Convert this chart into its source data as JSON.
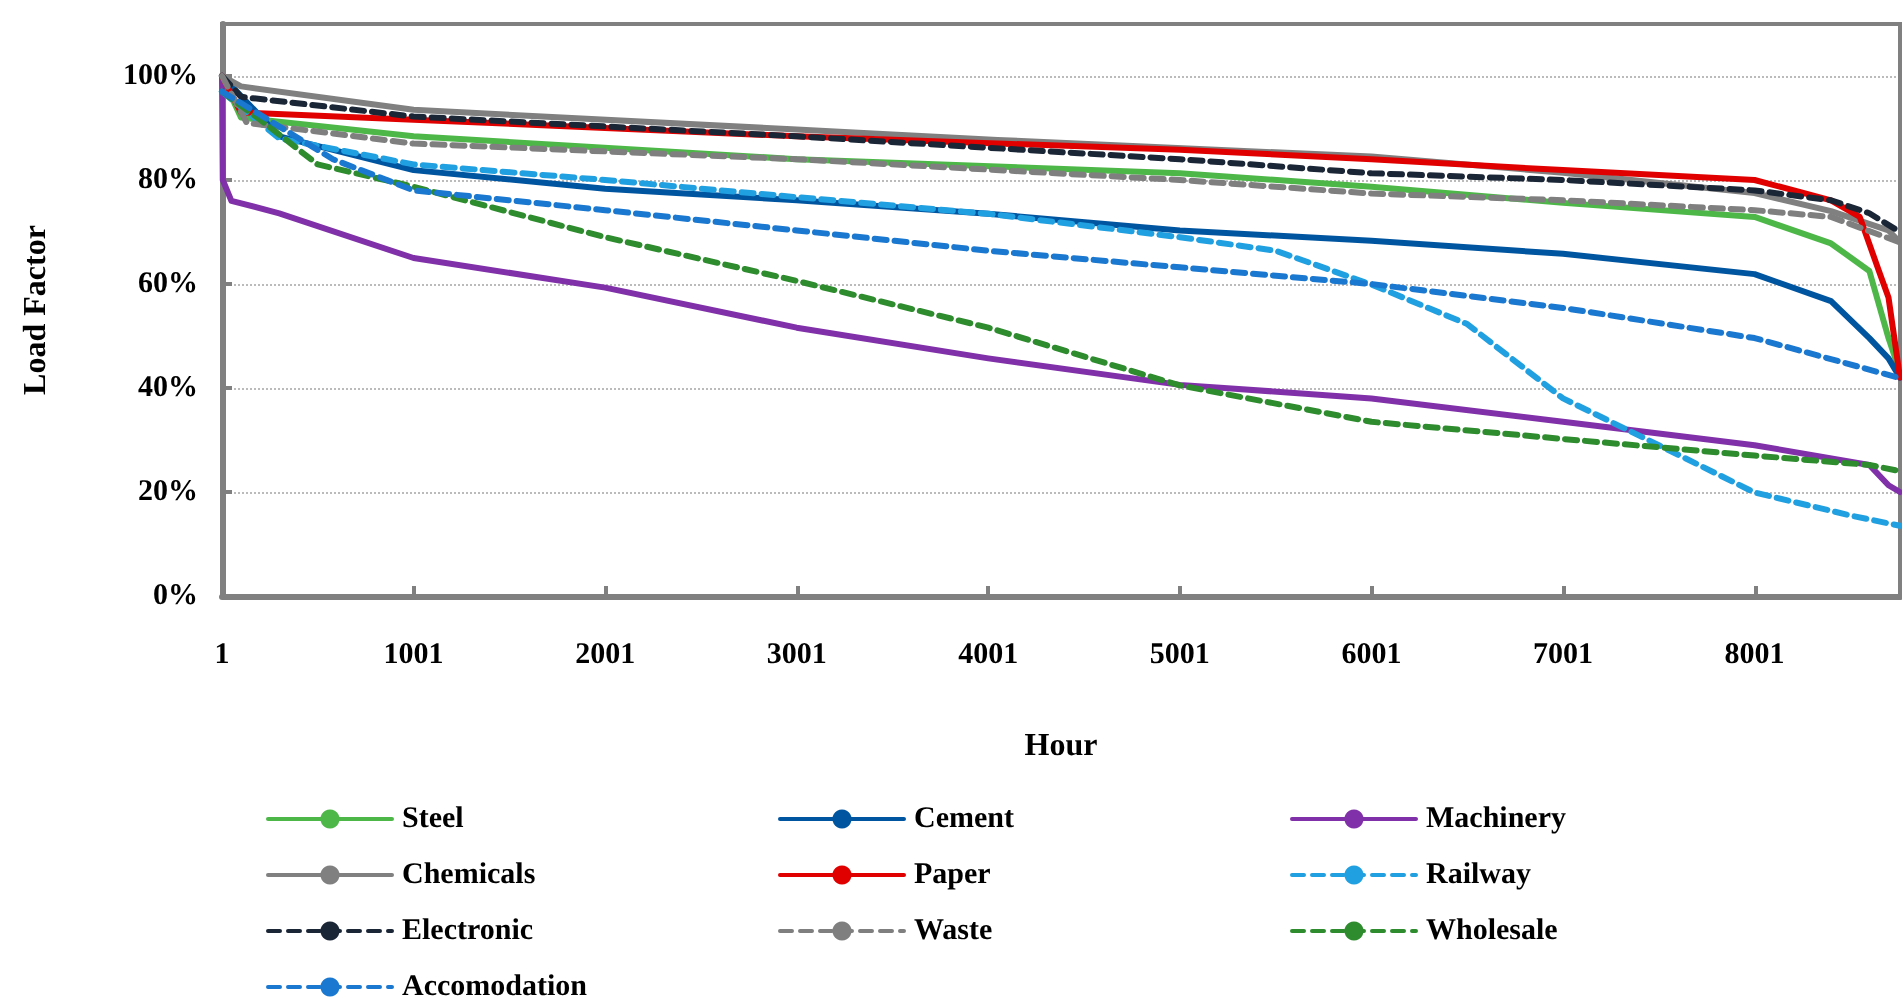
{
  "chart_data": {
    "type": "line",
    "xlabel": "Hour",
    "ylabel": "Load Factor",
    "xlim": [
      1,
      8760
    ],
    "xticks": [
      1,
      1001,
      2001,
      3001,
      4001,
      5001,
      6001,
      7001,
      8001
    ],
    "ylim": [
      0,
      110
    ],
    "yticks": [
      {
        "value": 0,
        "label": "0%"
      },
      {
        "value": 20,
        "label": "20%"
      },
      {
        "value": 40,
        "label": "40%"
      },
      {
        "value": 60,
        "label": "60%"
      },
      {
        "value": 80,
        "label": "80%"
      },
      {
        "value": 100,
        "label": "100%"
      }
    ],
    "grid": "y",
    "legend": "bottom",
    "marker": "none",
    "series": [
      {
        "name": "Steel",
        "color": "#4db848",
        "line_style": "solid",
        "x": [
          1,
          100,
          1001,
          3001,
          5001,
          6001,
          7001,
          8001,
          8400,
          8600,
          8700,
          8760
        ],
        "values": [
          100,
          92,
          88.4,
          84,
          81.3,
          78.7,
          75.6,
          72.9,
          67.8,
          62.5,
          49.6,
          43
        ]
      },
      {
        "name": "Cement",
        "color": "#0055a0",
        "line_style": "solid",
        "x": [
          1,
          300,
          1001,
          2001,
          3001,
          4001,
          5001,
          6001,
          7001,
          8001,
          8400,
          8600,
          8700,
          8760
        ],
        "values": [
          100,
          88.4,
          81.9,
          78.3,
          76.1,
          73.5,
          70.3,
          68.3,
          65.8,
          61.9,
          56.7,
          49.6,
          45.7,
          42
        ]
      },
      {
        "name": "Machinery",
        "color": "#8030a8",
        "line_style": "solid",
        "x": [
          1,
          5,
          50,
          300,
          1001,
          2001,
          3001,
          4001,
          5001,
          6001,
          7001,
          8001,
          8600,
          8700,
          8760
        ],
        "values": [
          100,
          80,
          76,
          73.6,
          65,
          59.3,
          51.6,
          45.7,
          40.6,
          38,
          33.5,
          29,
          25.2,
          21.3,
          20
        ]
      },
      {
        "name": "Chemicals",
        "color": "#808080",
        "line_style": "solid",
        "x": [
          1,
          100,
          1001,
          3001,
          4050,
          6001,
          7001,
          8001,
          8400,
          8700,
          8760
        ],
        "values": [
          100,
          98,
          93.5,
          89.7,
          87.7,
          84.5,
          81.4,
          77.5,
          74,
          70.3,
          68
        ]
      },
      {
        "name": "Paper",
        "color": "#e00000",
        "line_style": "solid",
        "x": [
          1,
          100,
          1001,
          3001,
          5001,
          6001,
          7001,
          8001,
          8400,
          8550,
          8650,
          8700,
          8760
        ],
        "values": [
          100,
          93,
          91.6,
          88.4,
          85.8,
          84,
          81.9,
          80,
          76.1,
          72.9,
          62.5,
          57.4,
          42
        ]
      },
      {
        "name": "Railway",
        "color": "#20a0e0",
        "line_style": "dashed",
        "x": [
          1,
          300,
          1001,
          2001,
          3001,
          4001,
          5001,
          5501,
          6001,
          6501,
          7001,
          7501,
          8001,
          8500,
          8760
        ],
        "values": [
          97,
          88,
          83,
          80,
          76.7,
          73.5,
          69,
          66.4,
          59.9,
          52.3,
          38,
          29,
          19.9,
          15.5,
          13.5
        ]
      },
      {
        "name": "Electronic",
        "color": "#1a2535",
        "line_style": "dashed",
        "x": [
          1,
          100,
          1001,
          3001,
          5001,
          6001,
          7001,
          8001,
          8400,
          8600,
          8760
        ],
        "values": [
          100,
          96,
          92.2,
          88.4,
          84,
          81.3,
          80,
          78,
          76.1,
          73.6,
          70
        ]
      },
      {
        "name": "Waste",
        "color": "#7f7f7f",
        "line_style": "dashed",
        "x": [
          1,
          130,
          1001,
          3001,
          5001,
          6001,
          7001,
          8001,
          8400,
          8760
        ],
        "values": [
          100,
          91,
          87,
          84,
          80,
          77.4,
          76.1,
          74.2,
          72.9,
          68
        ]
      },
      {
        "name": "Wholesale",
        "color": "#2e8b2e",
        "line_style": "dashed",
        "x": [
          1,
          200,
          500,
          1001,
          2001,
          3001,
          4001,
          5001,
          6001,
          7001,
          8001,
          8600,
          8760
        ],
        "values": [
          97,
          91.6,
          83,
          78.7,
          69,
          60.6,
          51.6,
          40.5,
          33.5,
          30.2,
          27,
          25.2,
          24
        ]
      },
      {
        "name": "Accomodation",
        "color": "#1a78d0",
        "line_style": "dashed",
        "x": [
          1,
          580,
          1001,
          2001,
          3001,
          4001,
          5001,
          6001,
          7001,
          8001,
          8760
        ],
        "values": [
          97,
          84,
          78,
          74.2,
          70.3,
          66.4,
          63.2,
          60,
          55.4,
          49.6,
          41.9
        ]
      }
    ]
  }
}
